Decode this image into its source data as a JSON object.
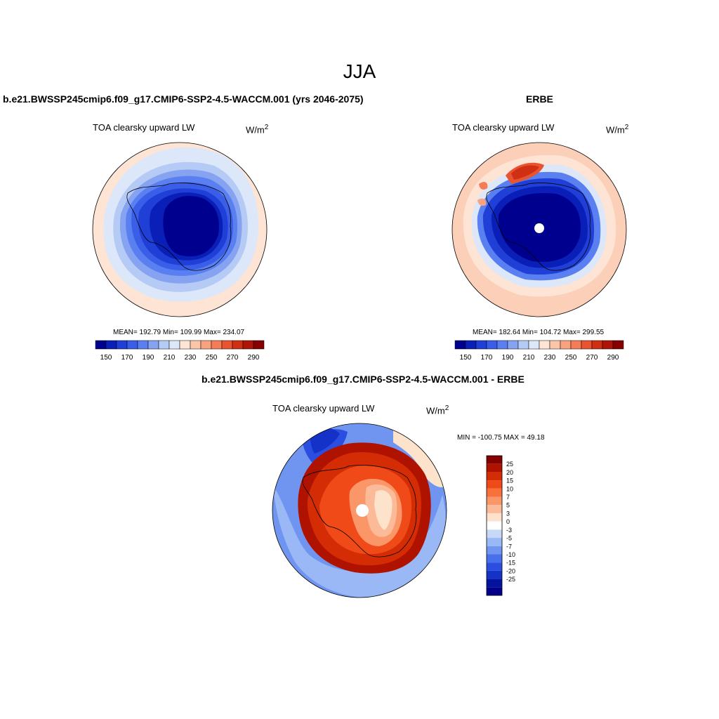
{
  "figure_title": "JJA",
  "panels": [
    {
      "title": "b.e21.BWSSP245cmip6.f09_g17.CMIP6-SSP2-4.5-WACCM.001 (yrs 2046-2075)",
      "variable": "TOA clearsky upward LW",
      "units_base": "W/m",
      "units_exp": "2",
      "stats": "MEAN= 192.79  Min= 109.99  Max= 234.07"
    },
    {
      "title": "ERBE",
      "variable": "TOA clearsky upward LW",
      "units_base": "W/m",
      "units_exp": "2",
      "stats": "MEAN= 182.64  Min= 104.72  Max= 299.55"
    },
    {
      "title": "b.e21.BWSSP245cmip6.f09_g17.CMIP6-SSP2-4.5-WACCM.001 - ERBE",
      "variable": "TOA clearsky upward LW",
      "units_base": "W/m",
      "units_exp": "2",
      "stats": "MIN = -100.75 MAX =  49.18"
    }
  ],
  "chart_data": [
    {
      "type": "heatmap",
      "title": "b.e21.BWSSP245cmip6.f09_g17.CMIP6-SSP2-4.5-WACCM.001 (yrs 2046-2075)",
      "subtitle": "TOA clearsky upward LW",
      "units": "W/m2",
      "projection": "south polar stereographic",
      "stats": {
        "mean": 192.79,
        "min": 109.99,
        "max": 234.07
      },
      "colorbar": {
        "orientation": "horizontal",
        "tick_labels": [
          "150",
          "170",
          "190",
          "210",
          "230",
          "250",
          "270",
          "290"
        ],
        "colors": [
          "#00008f",
          "#0a1fb8",
          "#1f3fd6",
          "#3a5ee8",
          "#5a7ff0",
          "#86a3f2",
          "#b5cbf5",
          "#dce7fa",
          "#fde4d4",
          "#fcc5a8",
          "#f9a27f",
          "#f47c56",
          "#e8542f",
          "#cf2f12",
          "#ad1606",
          "#860000"
        ]
      }
    },
    {
      "type": "heatmap",
      "title": "ERBE",
      "subtitle": "TOA clearsky upward LW",
      "units": "W/m2",
      "projection": "south polar stereographic",
      "stats": {
        "mean": 182.64,
        "min": 104.72,
        "max": 299.55
      },
      "colorbar": {
        "orientation": "horizontal",
        "tick_labels": [
          "150",
          "170",
          "190",
          "210",
          "230",
          "250",
          "270",
          "290"
        ],
        "colors": [
          "#00008f",
          "#0a1fb8",
          "#1f3fd6",
          "#3a5ee8",
          "#5a7ff0",
          "#86a3f2",
          "#b5cbf5",
          "#dce7fa",
          "#fde4d4",
          "#fcc5a8",
          "#f9a27f",
          "#f47c56",
          "#e8542f",
          "#cf2f12",
          "#ad1606",
          "#860000"
        ]
      }
    },
    {
      "type": "heatmap",
      "title": "b.e21.BWSSP245cmip6.f09_g17.CMIP6-SSP2-4.5-WACCM.001 - ERBE",
      "subtitle": "TOA clearsky upward LW",
      "units": "W/m2",
      "projection": "south polar stereographic",
      "stats": {
        "min": -100.75,
        "max": 49.18
      },
      "colorbar": {
        "orientation": "vertical",
        "tick_labels": [
          "25",
          "20",
          "15",
          "10",
          "7",
          "5",
          "3",
          "0",
          "-3",
          "-5",
          "-7",
          "-10",
          "-15",
          "-20",
          "-25"
        ],
        "colors": [
          "#860000",
          "#b01200",
          "#d42d06",
          "#ef4a17",
          "#f8703a",
          "#fb9668",
          "#fcbb98",
          "#fde2cc",
          "#ffffff",
          "#c8d9f8",
          "#9ab8f5",
          "#6f95f0",
          "#4770ea",
          "#2a4fe0",
          "#1432c8",
          "#05129e",
          "#00008a"
        ]
      }
    }
  ]
}
